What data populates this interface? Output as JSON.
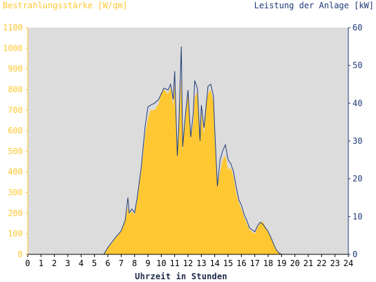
{
  "chart_data": {
    "type": "area",
    "ylabel_left": "Bestrahlungsstärke [W/qm]",
    "ylabel_right": "Leistung der Anlage [kW]",
    "xlabel": "Uhrzeit in Stunden",
    "xlim": [
      0,
      24
    ],
    "ylim_left": [
      0,
      1100
    ],
    "ylim_right": [
      0,
      60
    ],
    "x_ticks": [
      "0",
      "1",
      "2",
      "3",
      "4",
      "5",
      "6",
      "7",
      "8",
      "9",
      "10",
      "11",
      "12",
      "13",
      "14",
      "15",
      "16",
      "17",
      "18",
      "19",
      "20",
      "21",
      "22",
      "23",
      "24"
    ],
    "y_ticks_left": [
      "0",
      "100",
      "200",
      "300",
      "400",
      "500",
      "600",
      "700",
      "800",
      "900",
      "1000",
      "1100"
    ],
    "y_ticks_right": [
      "0",
      "10",
      "20",
      "30",
      "40",
      "50",
      "60"
    ],
    "colors": {
      "irradiance": "#ffc833",
      "power": "#1f3a7a",
      "plot_bg": "#dcdcdc"
    },
    "series": [
      {
        "name": "Bestrahlungsstärke [W/qm]",
        "axis": "left",
        "x": [
          0,
          5.7,
          6.0,
          6.3,
          6.6,
          7.0,
          7.3,
          7.5,
          7.6,
          7.8,
          8.0,
          8.2,
          8.5,
          8.8,
          9.0,
          9.2,
          9.5,
          9.8,
          10.0,
          10.2,
          10.5,
          10.7,
          10.9,
          11.0,
          11.2,
          11.3,
          11.5,
          11.6,
          11.8,
          12.0,
          12.2,
          12.4,
          12.5,
          12.7,
          12.9,
          13.0,
          13.2,
          13.4,
          13.5,
          13.7,
          13.9,
          14.0,
          14.2,
          14.4,
          14.6,
          14.8,
          15.0,
          15.2,
          15.4,
          15.6,
          15.8,
          16.0,
          16.2,
          16.4,
          16.6,
          16.8,
          17.0,
          17.2,
          17.4,
          17.6,
          17.8,
          18.0,
          18.2,
          18.4,
          18.6,
          18.8,
          19.0,
          19.3,
          24
        ],
        "y": [
          0,
          0,
          30,
          55,
          80,
          110,
          160,
          230,
          195,
          210,
          190,
          260,
          400,
          580,
          660,
          700,
          700,
          730,
          780,
          800,
          780,
          810,
          720,
          830,
          460,
          590,
          860,
          500,
          660,
          780,
          560,
          640,
          760,
          790,
          540,
          690,
          580,
          740,
          780,
          800,
          740,
          560,
          330,
          400,
          460,
          480,
          410,
          420,
          380,
          300,
          250,
          220,
          180,
          150,
          120,
          110,
          100,
          130,
          150,
          160,
          130,
          110,
          80,
          50,
          20,
          8,
          0,
          0,
          0
        ]
      },
      {
        "name": "Leistung der Anlage [kW]",
        "axis": "right",
        "x": [
          0,
          5.7,
          6.0,
          6.3,
          6.6,
          7.0,
          7.3,
          7.5,
          7.6,
          7.8,
          8.0,
          8.2,
          8.5,
          8.8,
          9.0,
          9.2,
          9.5,
          9.8,
          10.0,
          10.2,
          10.5,
          10.7,
          10.9,
          11.0,
          11.2,
          11.3,
          11.5,
          11.6,
          11.8,
          12.0,
          12.2,
          12.4,
          12.5,
          12.7,
          12.9,
          13.0,
          13.2,
          13.4,
          13.5,
          13.7,
          13.9,
          14.0,
          14.2,
          14.4,
          14.6,
          14.8,
          15.0,
          15.2,
          15.4,
          15.6,
          15.8,
          16.0,
          16.2,
          16.4,
          16.6,
          16.8,
          17.0,
          17.2,
          17.4,
          17.6,
          17.8,
          18.0,
          18.2,
          18.4,
          18.6,
          18.8,
          19.0,
          19.3,
          24
        ],
        "y": [
          0,
          0,
          1.8,
          3.2,
          4.6,
          6.2,
          9.0,
          15.0,
          11.0,
          12.0,
          11.0,
          15.0,
          23.0,
          34.0,
          39.0,
          39.5,
          40.0,
          41.0,
          42.5,
          44.0,
          43.5,
          45.0,
          41.0,
          48.5,
          26.0,
          33.0,
          55.0,
          28.5,
          36.5,
          43.5,
          31.0,
          37.5,
          46.0,
          44.0,
          30.0,
          39.5,
          33.5,
          41.0,
          44.5,
          45.0,
          42.0,
          33.0,
          18.0,
          25.0,
          27.5,
          29.0,
          25.0,
          24.0,
          22.0,
          18.0,
          14.5,
          13.0,
          10.5,
          9.0,
          7.0,
          6.5,
          6.0,
          7.5,
          8.5,
          8.0,
          7.0,
          6.0,
          4.5,
          2.8,
          1.2,
          0.4,
          0,
          0,
          0
        ]
      }
    ]
  }
}
